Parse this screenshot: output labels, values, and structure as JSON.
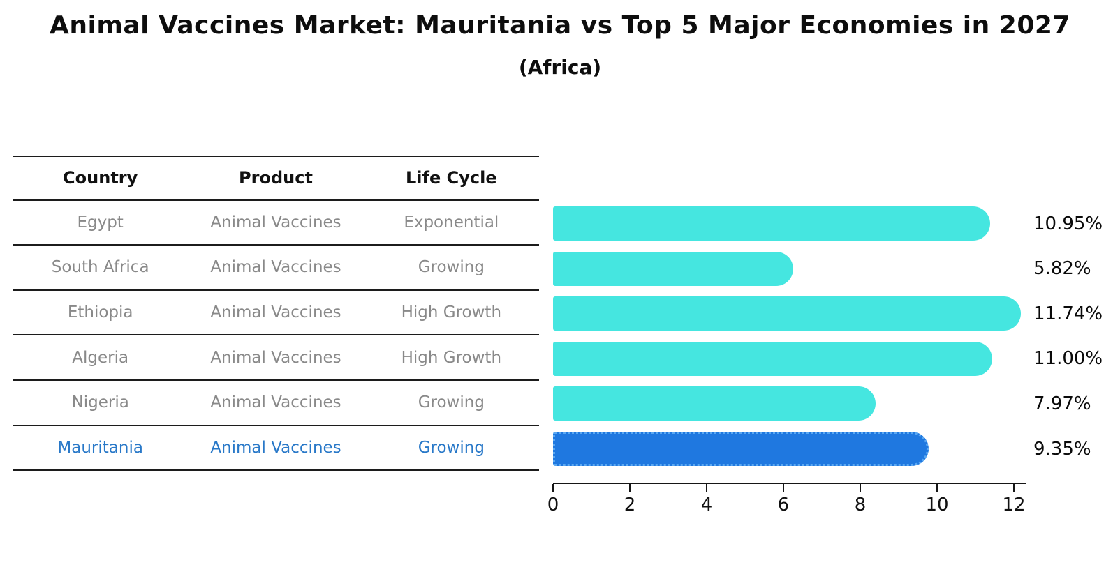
{
  "chart_data": {
    "type": "bar",
    "orientation": "horizontal",
    "title": "Animal Vaccines Market: Mauritania vs Top 5 Major Economies in 2027",
    "subtitle": "(Africa)",
    "categories": [
      "Egypt",
      "South Africa",
      "Ethiopia",
      "Algeria",
      "Nigeria",
      "Mauritania"
    ],
    "values": [
      10.95,
      5.82,
      11.74,
      11.0,
      7.97,
      9.35
    ],
    "value_labels": [
      "10.95%",
      "5.82%",
      "11.74%",
      "11.00%",
      "7.97%",
      "9.35%"
    ],
    "xticks": [
      "0",
      "2",
      "4",
      "6",
      "8",
      "10",
      "12"
    ],
    "xlim": [
      0,
      12.33
    ],
    "highlight_index": 5,
    "highlight_country": "Mauritania",
    "grid": false,
    "legend": false
  },
  "table": {
    "headers": {
      "country": "Country",
      "product": "Product",
      "life_cycle": "Life Cycle"
    },
    "rows": [
      {
        "country": "Egypt",
        "product": "Animal Vaccines",
        "life_cycle": "Exponential"
      },
      {
        "country": "South Africa",
        "product": "Animal Vaccines",
        "life_cycle": "Growing"
      },
      {
        "country": "Ethiopia",
        "product": "Animal Vaccines",
        "life_cycle": "High Growth"
      },
      {
        "country": "Algeria",
        "product": "Animal Vaccines",
        "life_cycle": "High Growth"
      },
      {
        "country": "Nigeria",
        "product": "Animal Vaccines",
        "life_cycle": "Growing"
      },
      {
        "country": "Mauritania",
        "product": "Animal Vaccines",
        "life_cycle": "Growing"
      }
    ]
  },
  "colors": {
    "bar-cyan": "#45e6e0",
    "bar-blue": "#1f78e0",
    "bar-dot": "#5aa8f2",
    "highlight-text": "#2878c8"
  }
}
